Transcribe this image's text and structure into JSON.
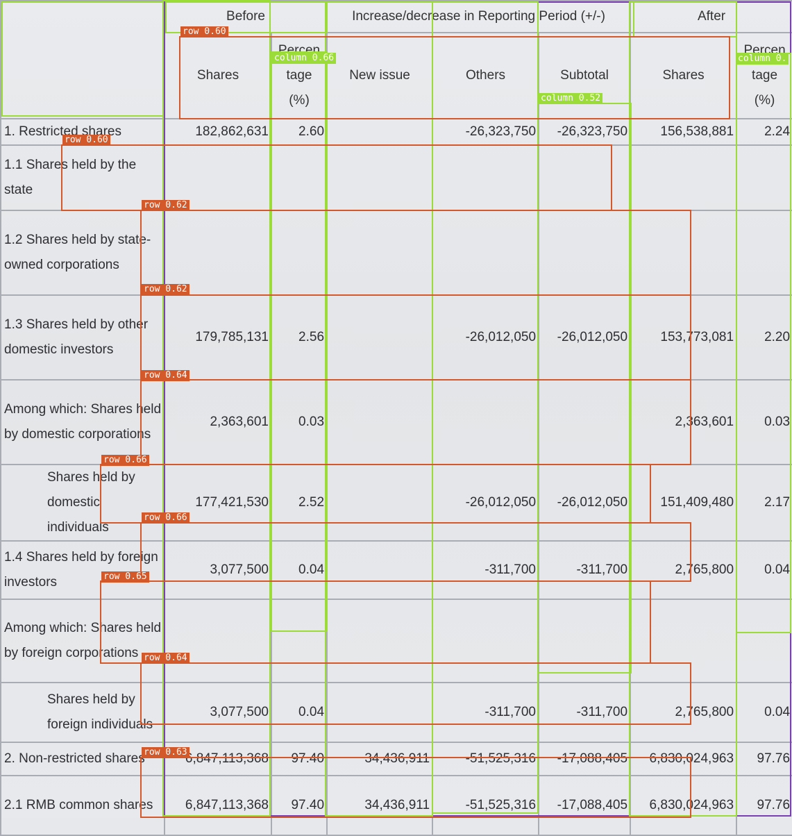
{
  "table": {
    "header": {
      "before": "Before",
      "change": "Increase/decrease in Reporting Period (+/-)",
      "after": "After",
      "shares": "Shares",
      "percentage_line1": "Percen",
      "percentage_line2": "tage",
      "percentage_line3": "(%)",
      "new_issue": "New issue",
      "others": "Others",
      "subtotal": "Subtotal"
    },
    "rows": [
      {
        "label": "1. Restricted shares",
        "before_shares": "182,862,631",
        "before_pct": "2.60",
        "new_issue": "",
        "others": "-26,323,750",
        "subtotal": "-26,323,750",
        "after_shares": "156,538,881",
        "after_pct": "2.24"
      },
      {
        "label": "1.1 Shares held by the state",
        "before_shares": "",
        "before_pct": "",
        "new_issue": "",
        "others": "",
        "subtotal": "",
        "after_shares": "",
        "after_pct": ""
      },
      {
        "label": "1.2 Shares held by state-owned corporations",
        "before_shares": "",
        "before_pct": "",
        "new_issue": "",
        "others": "",
        "subtotal": "",
        "after_shares": "",
        "after_pct": ""
      },
      {
        "label": "1.3 Shares held by other domestic investors",
        "before_shares": "179,785,131",
        "before_pct": "2.56",
        "new_issue": "",
        "others": "-26,012,050",
        "subtotal": "-26,012,050",
        "after_shares": "153,773,081",
        "after_pct": "2.20"
      },
      {
        "label": "Among which: Shares held by domestic corporations",
        "before_shares": "2,363,601",
        "before_pct": "0.03",
        "new_issue": "",
        "others": "",
        "subtotal": "",
        "after_shares": "2,363,601",
        "after_pct": "0.03"
      },
      {
        "label": "Shares held by domestic individuals",
        "before_shares": "177,421,530",
        "before_pct": "2.52",
        "new_issue": "",
        "others": "-26,012,050",
        "subtotal": "-26,012,050",
        "after_shares": "151,409,480",
        "after_pct": "2.17"
      },
      {
        "label": "1.4 Shares held by foreign investors",
        "before_shares": "3,077,500",
        "before_pct": "0.04",
        "new_issue": "",
        "others": "-311,700",
        "subtotal": "-311,700",
        "after_shares": "2,765,800",
        "after_pct": "0.04"
      },
      {
        "label": "Among which: Shares held by foreign corporations",
        "before_shares": "",
        "before_pct": "",
        "new_issue": "",
        "others": "",
        "subtotal": "",
        "after_shares": "",
        "after_pct": ""
      },
      {
        "label": "Shares held by foreign individuals",
        "before_shares": "3,077,500",
        "before_pct": "0.04",
        "new_issue": "",
        "others": "-311,700",
        "subtotal": "-311,700",
        "after_shares": "2,765,800",
        "after_pct": "0.04"
      },
      {
        "label": "2. Non-restricted shares",
        "before_shares": "6,847,113,368",
        "before_pct": "97.40",
        "new_issue": "34,436,911",
        "others": "-51,525,316",
        "subtotal": "-17,088,405",
        "after_shares": "6,830,024,963",
        "after_pct": "97.76"
      },
      {
        "label": "2.1 RMB common shares",
        "before_shares": "6,847,113,368",
        "before_pct": "97.40",
        "new_issue": "34,436,911",
        "others": "-51,525,316",
        "subtotal": "-17,088,405",
        "after_shares": "6,830,024,963",
        "after_pct": "97.76"
      }
    ]
  },
  "overlay": {
    "row_tags": [
      "row 0.60",
      "row 0.60",
      "row 0.62",
      "row 0.62",
      "row 0.64",
      "row 0.66",
      "row 0.66",
      "row 0.65",
      "row 0.64",
      "row 0.63"
    ],
    "column_tags": [
      "column 0.66",
      "column 0.52",
      "column 0."
    ],
    "colors": {
      "row": "#d3582a",
      "column": "#9bdc38",
      "frame": "#7a3fb0"
    }
  }
}
